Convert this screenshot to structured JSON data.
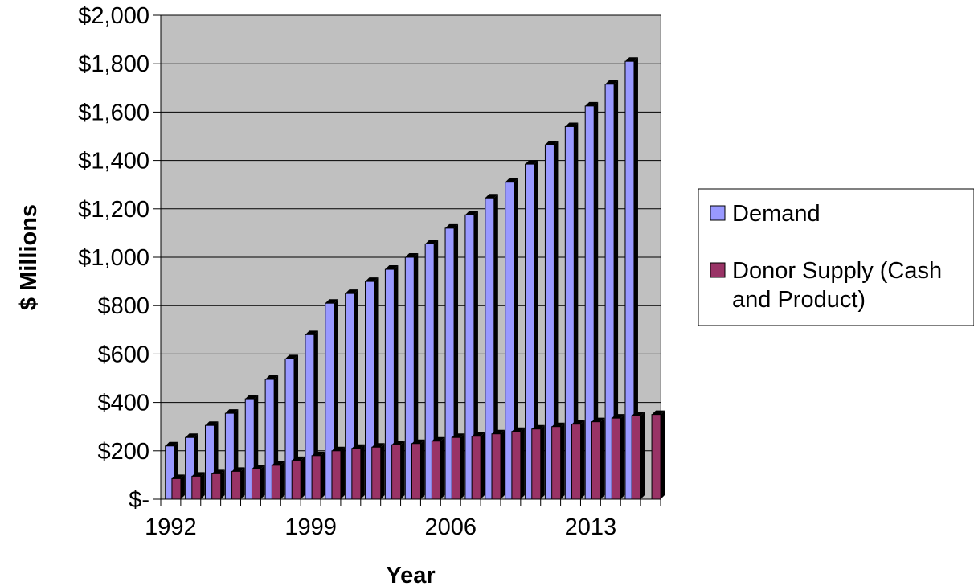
{
  "chart_data": {
    "type": "bar",
    "xlabel": "Year",
    "ylabel": "$ Millions",
    "ylim": [
      0,
      2000
    ],
    "yticks": [
      {
        "value": 0,
        "label": "$-"
      },
      {
        "value": 200,
        "label": "$200"
      },
      {
        "value": 400,
        "label": "$400"
      },
      {
        "value": 600,
        "label": "$600"
      },
      {
        "value": 800,
        "label": "$800"
      },
      {
        "value": 1000,
        "label": "$1,000"
      },
      {
        "value": 1200,
        "label": "$1,200"
      },
      {
        "value": 1400,
        "label": "$1,400"
      },
      {
        "value": 1600,
        "label": "$1,600"
      },
      {
        "value": 1800,
        "label": "$1,800"
      },
      {
        "value": 2000,
        "label": "$2,000"
      }
    ],
    "categories": [
      1992,
      1993,
      1994,
      1995,
      1996,
      1997,
      1998,
      1999,
      2000,
      2001,
      2002,
      2003,
      2004,
      2005,
      2006,
      2007,
      2008,
      2009,
      2010,
      2011,
      2012,
      2013,
      2014,
      2015,
      2016
    ],
    "xtick_labels": [
      "1992",
      "1999",
      "2006",
      "2013"
    ],
    "series": [
      {
        "name": "Demand",
        "color": "#9999ff",
        "values": [
          220,
          255,
          305,
          355,
          415,
          495,
          580,
          680,
          810,
          850,
          900,
          950,
          1000,
          1055,
          1120,
          1175,
          1245,
          1310,
          1385,
          1465,
          1540,
          1625,
          1715,
          1810,
          null
        ]
      },
      {
        "name": "Donor Supply (Cash and Product)",
        "color": "#993366",
        "values": [
          85,
          95,
          105,
          115,
          125,
          140,
          160,
          180,
          200,
          210,
          215,
          225,
          230,
          240,
          255,
          260,
          270,
          280,
          290,
          300,
          310,
          320,
          335,
          345,
          350
        ]
      }
    ],
    "grid": true,
    "plot_background": "#c0c0c0",
    "legend_position": "right"
  }
}
